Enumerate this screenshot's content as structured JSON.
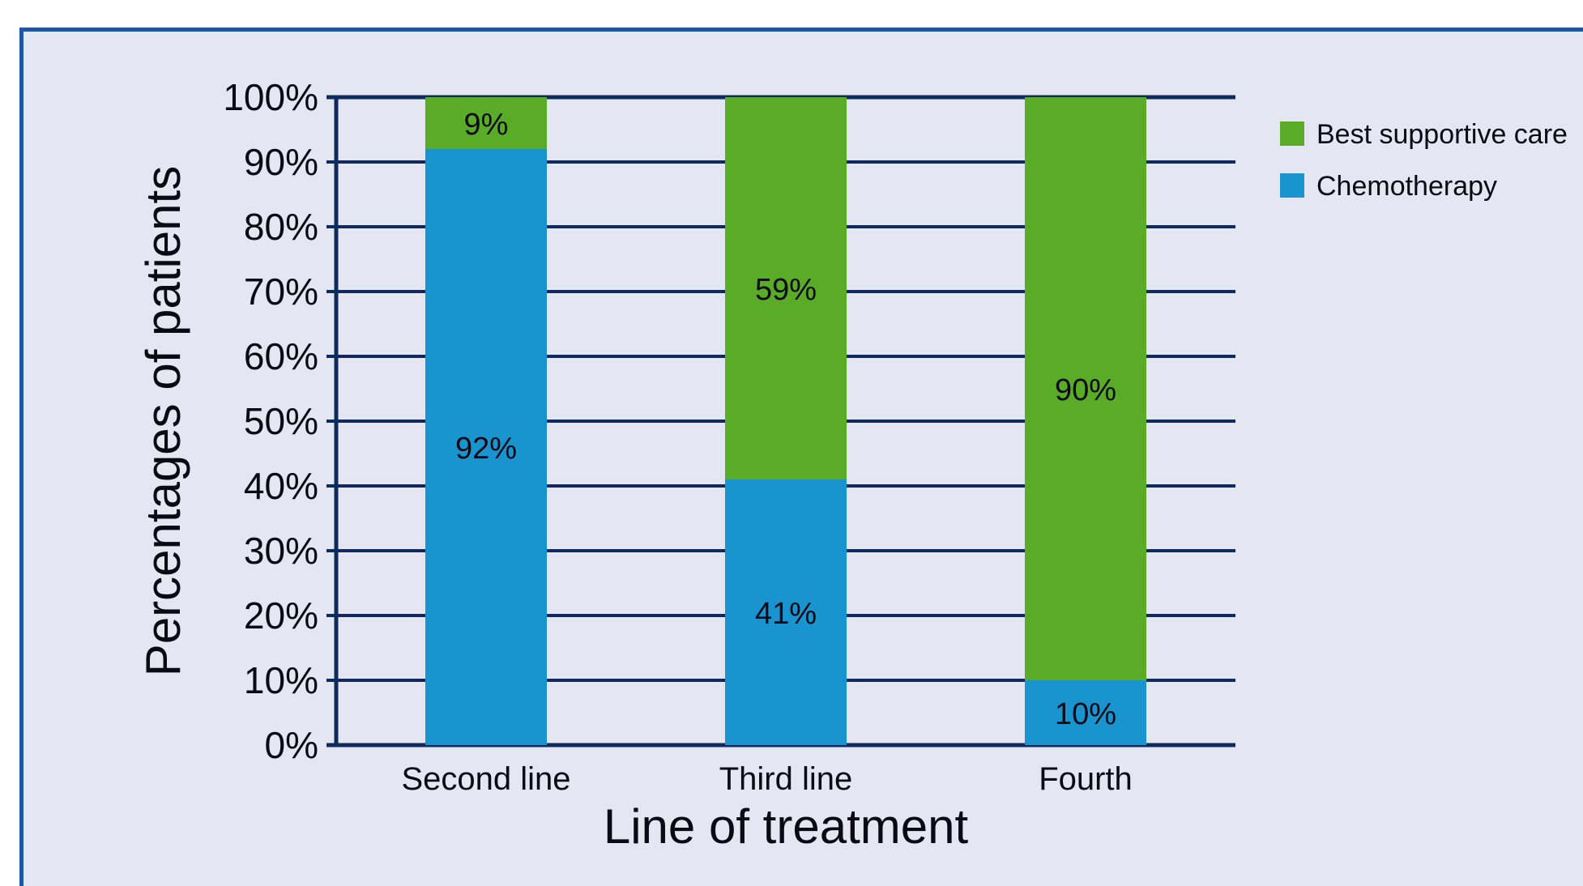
{
  "chart_data": {
    "type": "bar",
    "stacked": true,
    "categories": [
      "Second line",
      "Third line",
      "Fourth"
    ],
    "series": [
      {
        "name": "Chemotherapy",
        "values": [
          92,
          41,
          10
        ],
        "labels": [
          "92%",
          "41%",
          "10%"
        ],
        "color": "#1a94cf"
      },
      {
        "name": "Best supportive care",
        "values": [
          9,
          59,
          90
        ],
        "labels": [
          "9%",
          "59%",
          "90%"
        ],
        "color": "#5aab27"
      }
    ],
    "xlabel": "Line of treatment",
    "ylabel": "Percentages of patients",
    "ylim": [
      0,
      100
    ],
    "yticks": [
      "0%",
      "10%",
      "20%",
      "30%",
      "40%",
      "50%",
      "60%",
      "70%",
      "80%",
      "90%",
      "100%"
    ],
    "grid": true,
    "legend": {
      "position": "top-right",
      "entries": [
        {
          "label": "Best supportive care",
          "color": "#5aab27"
        },
        {
          "label": "Chemotherapy",
          "color": "#1a94cf"
        }
      ]
    },
    "colors": {
      "background": "#e4e6f1",
      "frame": "#1f56a0",
      "gridline": "#0f2a5c"
    }
  }
}
